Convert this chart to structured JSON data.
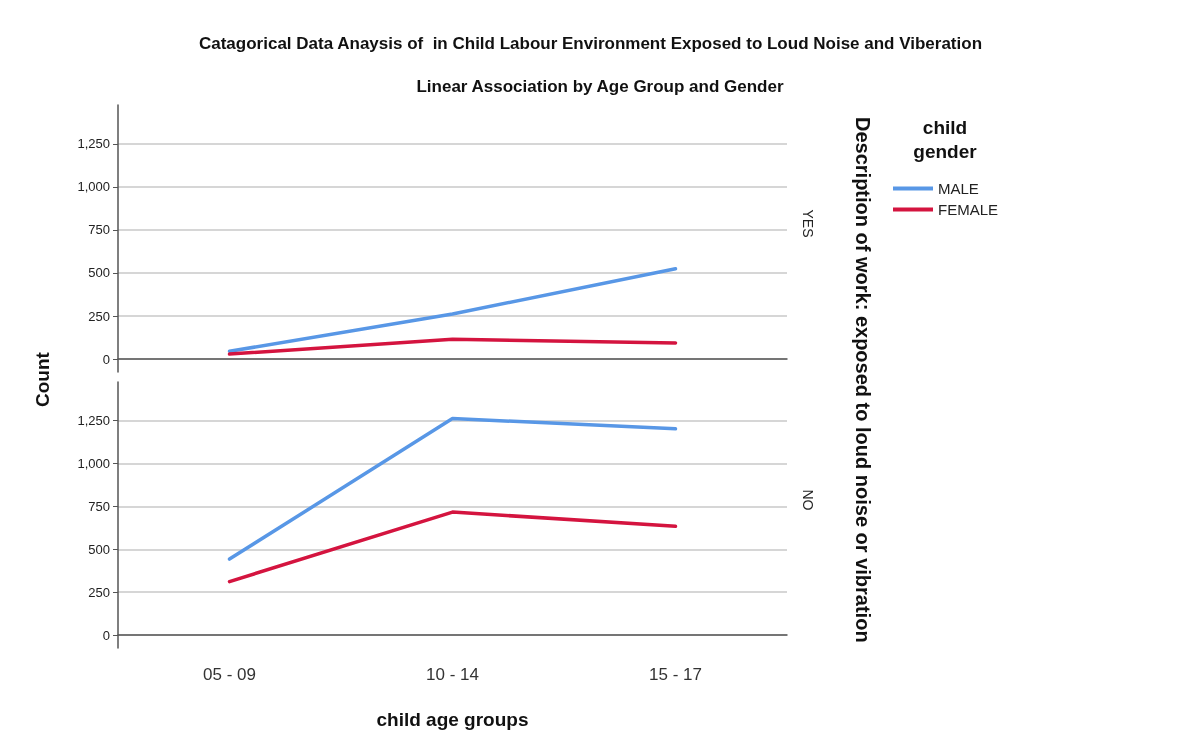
{
  "chart_data": [
    {
      "type": "line",
      "title": "Catagorical Data Anaysis of  in Child Labour Environment Exposed to Loud Noise and Viberation",
      "subtitle": "Linear Association by Age Group and Gender",
      "ylabel": "Count",
      "legend_title": "child gender",
      "annotations": [
        "YES",
        "Description of work:  exposed to loud noise or vibration"
      ],
      "categories": [
        null,
        null,
        null
      ],
      "series": [
        {
          "name": "MALE",
          "color": "#5897e6",
          "values": [
            45,
            262,
            524
          ]
        },
        {
          "name": "FEMALE",
          "color": "#d4143f",
          "values": [
            29,
            115,
            94
          ]
        }
      ],
      "ylim": [
        -75,
        1475
      ],
      "yticks": [
        {
          "value": 0,
          "label": "0"
        },
        {
          "value": 250,
          "label": "250"
        },
        {
          "value": 500,
          "label": "500"
        },
        {
          "value": 750,
          "label": "750"
        },
        {
          "value": 1000,
          "label": "1,000"
        },
        {
          "value": 1250,
          "label": "1,250"
        }
      ],
      "grid": "y",
      "legend": "top right",
      "tick_labels": "y",
      "marker": "none",
      "line_style": "solid"
    },
    {
      "type": "line",
      "xlabel": "child age groups",
      "annotations": [
        "NO"
      ],
      "categories": [
        "05 - 09",
        "10 - 14",
        "15 - 17"
      ],
      "series": [
        {
          "color": "#5897e6",
          "values": [
            443,
            1262,
            1202
          ]
        },
        {
          "color": "#d4143f",
          "values": [
            312,
            717,
            634
          ]
        }
      ],
      "ylim": [
        -75,
        1475
      ],
      "yticks": [
        {
          "value": 0,
          "label": "0"
        },
        {
          "value": 250,
          "label": "250"
        },
        {
          "value": 500,
          "label": "500"
        },
        {
          "value": 750,
          "label": "750"
        },
        {
          "value": 1000,
          "label": "1,000"
        },
        {
          "value": 1250,
          "label": "1,250"
        }
      ],
      "grid": "y",
      "marker": "none",
      "line_style": "solid"
    }
  ]
}
